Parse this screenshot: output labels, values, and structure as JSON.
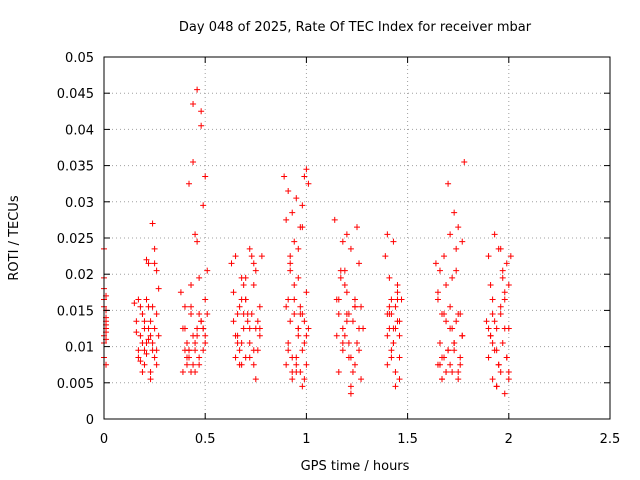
{
  "chart_data": {
    "type": "scatter",
    "title": "Day 048 of 2025, Rate Of TEC Index for receiver mbar",
    "xlabel": "GPS time / hours",
    "ylabel": "ROTI / TECUs",
    "xlim": [
      0,
      2.5
    ],
    "ylim": [
      0,
      0.05
    ],
    "x_ticks": [
      0,
      0.5,
      1,
      1.5,
      2,
      2.5
    ],
    "x_tick_labels": [
      "0",
      "0.5",
      "1",
      "1.5",
      "2",
      "2.5"
    ],
    "y_ticks": [
      0,
      0.005,
      0.01,
      0.015,
      0.02,
      0.025,
      0.03,
      0.035,
      0.04,
      0.045,
      0.05
    ],
    "y_tick_labels": [
      "0",
      "0.005",
      "0.01",
      "0.015",
      "0.02",
      "0.025",
      "0.03",
      "0.035",
      "0.04",
      "0.045",
      "0.05"
    ],
    "grid": true,
    "marker": "+",
    "color": "#ff0000",
    "series": [
      {
        "name": "ROTI",
        "x": [
          0.0,
          0.0,
          0.0,
          0.0,
          0.01,
          0.01,
          0.01,
          0.01,
          0.01,
          0.0,
          0.01,
          0.0,
          0.01,
          0.0,
          0.01,
          0.0,
          0.01,
          0.15,
          0.16,
          0.17,
          0.17,
          0.18,
          0.19,
          0.19,
          0.2,
          0.2,
          0.21,
          0.21,
          0.22,
          0.22,
          0.23,
          0.23,
          0.24,
          0.24,
          0.25,
          0.25,
          0.26,
          0.26,
          0.27,
          0.27,
          0.16,
          0.18,
          0.2,
          0.22,
          0.24,
          0.26,
          0.21,
          0.23,
          0.25,
          0.19,
          0.17,
          0.22,
          0.24,
          0.26,
          0.2,
          0.18,
          0.23,
          0.25,
          0.21,
          0.38,
          0.39,
          0.39,
          0.4,
          0.4,
          0.41,
          0.41,
          0.42,
          0.42,
          0.43,
          0.43,
          0.44,
          0.44,
          0.45,
          0.45,
          0.46,
          0.46,
          0.47,
          0.47,
          0.48,
          0.48,
          0.49,
          0.49,
          0.5,
          0.5,
          0.51,
          0.51,
          0.4,
          0.42,
          0.44,
          0.46,
          0.48,
          0.5,
          0.43,
          0.45,
          0.47,
          0.49,
          0.44,
          0.46,
          0.48,
          0.5,
          0.41,
          0.43,
          0.45,
          0.47,
          0.49,
          0.42,
          0.63,
          0.64,
          0.65,
          0.65,
          0.66,
          0.67,
          0.67,
          0.68,
          0.68,
          0.69,
          0.7,
          0.7,
          0.71,
          0.72,
          0.72,
          0.73,
          0.74,
          0.74,
          0.75,
          0.75,
          0.76,
          0.77,
          0.77,
          0.78,
          0.64,
          0.66,
          0.68,
          0.7,
          0.72,
          0.74,
          0.76,
          0.65,
          0.67,
          0.69,
          0.71,
          0.73,
          0.75,
          0.77,
          0.66,
          0.68,
          0.7,
          0.72,
          0.74,
          0.69,
          0.89,
          0.9,
          0.9,
          0.91,
          0.91,
          0.92,
          0.92,
          0.93,
          0.93,
          0.94,
          0.94,
          0.95,
          0.95,
          0.96,
          0.96,
          0.97,
          0.97,
          0.98,
          0.98,
          0.99,
          0.99,
          1.0,
          1.0,
          1.01,
          1.01,
          0.9,
          0.92,
          0.94,
          0.96,
          0.98,
          1.0,
          0.91,
          0.93,
          0.95,
          0.97,
          0.99,
          0.92,
          0.94,
          0.96,
          0.98,
          1.0,
          0.93,
          0.95,
          0.97,
          0.99,
          0.91,
          0.96,
          0.98,
          1.14,
          1.15,
          1.16,
          1.16,
          1.17,
          1.18,
          1.18,
          1.19,
          1.2,
          1.2,
          1.21,
          1.22,
          1.22,
          1.23,
          1.24,
          1.24,
          1.25,
          1.26,
          1.26,
          1.27,
          1.27,
          1.28,
          1.16,
          1.18,
          1.2,
          1.22,
          1.24,
          1.26,
          1.17,
          1.19,
          1.21,
          1.23,
          1.25,
          1.18,
          1.2,
          1.22,
          1.24,
          1.15,
          1.19,
          1.21,
          1.39,
          1.4,
          1.4,
          1.41,
          1.41,
          1.42,
          1.42,
          1.43,
          1.43,
          1.44,
          1.44,
          1.45,
          1.45,
          1.46,
          1.46,
          1.47,
          1.4,
          1.41,
          1.42,
          1.43,
          1.44,
          1.45,
          1.46,
          1.41,
          1.43,
          1.45,
          1.42,
          1.44,
          1.4,
          1.46,
          1.64,
          1.65,
          1.65,
          1.66,
          1.66,
          1.67,
          1.67,
          1.68,
          1.68,
          1.69,
          1.69,
          1.7,
          1.7,
          1.71,
          1.71,
          1.72,
          1.72,
          1.73,
          1.73,
          1.74,
          1.74,
          1.75,
          1.75,
          1.76,
          1.76,
          1.77,
          1.77,
          1.78,
          1.65,
          1.67,
          1.69,
          1.71,
          1.73,
          1.75,
          1.77,
          1.66,
          1.68,
          1.7,
          1.72,
          1.74,
          1.76,
          1.67,
          1.69,
          1.71,
          1.73,
          1.75,
          1.89,
          1.9,
          1.9,
          1.91,
          1.91,
          1.92,
          1.92,
          1.93,
          1.93,
          1.94,
          1.94,
          1.95,
          1.95,
          1.96,
          1.96,
          1.97,
          1.97,
          1.98,
          1.98,
          1.99,
          1.99,
          2.0,
          2.0,
          2.01,
          1.9,
          1.92,
          1.94,
          1.96,
          1.98,
          2.0,
          1.91,
          1.93,
          1.95,
          1.97,
          1.99,
          1.92,
          1.94,
          1.96,
          1.98,
          2.0
        ],
        "y": [
          0.0235,
          0.0195,
          0.018,
          0.0165,
          0.015,
          0.014,
          0.013,
          0.0125,
          0.012,
          0.0115,
          0.011,
          0.0105,
          0.0075,
          0.0085,
          0.017,
          0.0155,
          0.0135,
          0.016,
          0.012,
          0.0095,
          0.0165,
          0.008,
          0.0105,
          0.0145,
          0.0075,
          0.0125,
          0.009,
          0.022,
          0.0155,
          0.011,
          0.0065,
          0.0135,
          0.027,
          0.0095,
          0.0215,
          0.0085,
          0.0205,
          0.0145,
          0.0115,
          0.018,
          0.0135,
          0.0115,
          0.0095,
          0.0125,
          0.0105,
          0.0075,
          0.0165,
          0.0055,
          0.0235,
          0.0065,
          0.0085,
          0.0215,
          0.0155,
          0.0095,
          0.0135,
          0.0155,
          0.0115,
          0.0125,
          0.0105,
          0.0175,
          0.0125,
          0.0065,
          0.0155,
          0.0095,
          0.0105,
          0.0075,
          0.0085,
          0.0325,
          0.0185,
          0.0145,
          0.0435,
          0.0115,
          0.0095,
          0.0255,
          0.0125,
          0.0245,
          0.0195,
          0.0075,
          0.0135,
          0.0425,
          0.0095,
          0.0295,
          0.0165,
          0.0335,
          0.0145,
          0.0205,
          0.0125,
          0.0095,
          0.0075,
          0.0115,
          0.0135,
          0.0105,
          0.0155,
          0.0065,
          0.0085,
          0.0125,
          0.0355,
          0.0455,
          0.0405,
          0.0115,
          0.0085,
          0.0065,
          0.0105,
          0.0145,
          0.0125,
          0.0095,
          0.0215,
          0.0135,
          0.0085,
          0.0225,
          0.0115,
          0.0155,
          0.0095,
          0.0195,
          0.0075,
          0.0125,
          0.0165,
          0.0085,
          0.0135,
          0.0235,
          0.0105,
          0.0145,
          0.0185,
          0.0075,
          0.0125,
          0.0205,
          0.0095,
          0.0155,
          0.0115,
          0.0225,
          0.0175,
          0.0145,
          0.0105,
          0.0165,
          0.0125,
          0.0095,
          0.0135,
          0.0115,
          0.0075,
          0.0185,
          0.0145,
          0.0225,
          0.0055,
          0.0125,
          0.0105,
          0.0165,
          0.0195,
          0.0085,
          0.0215,
          0.0145,
          0.0335,
          0.0155,
          0.0075,
          0.0315,
          0.0095,
          0.0225,
          0.0135,
          0.0285,
          0.0055,
          0.0165,
          0.0245,
          0.0085,
          0.0305,
          0.0115,
          0.0195,
          0.0065,
          0.0145,
          0.0265,
          0.0045,
          0.0105,
          0.0335,
          0.0175,
          0.0075,
          0.0325,
          0.0125,
          0.0275,
          0.0205,
          0.0145,
          0.0125,
          0.0095,
          0.0115,
          0.0105,
          0.0085,
          0.0065,
          0.0155,
          0.0135,
          0.0215,
          0.0185,
          0.0235,
          0.0145,
          0.0345,
          0.0065,
          0.0075,
          0.0265,
          0.0055,
          0.0165,
          0.0125,
          0.0295,
          0.0275,
          0.0115,
          0.0165,
          0.0065,
          0.0205,
          0.0125,
          0.0095,
          0.0185,
          0.0145,
          0.0255,
          0.0105,
          0.0045,
          0.0235,
          0.0135,
          0.0075,
          0.0165,
          0.0265,
          0.0095,
          0.0215,
          0.0155,
          0.0055,
          0.0125,
          0.0145,
          0.0105,
          0.0175,
          0.0085,
          0.0155,
          0.0125,
          0.0195,
          0.0115,
          0.0145,
          0.0065,
          0.0105,
          0.0245,
          0.0135,
          0.0035,
          0.0155,
          0.0165,
          0.0205,
          0.0085,
          0.0225,
          0.0145,
          0.0075,
          0.0195,
          0.0125,
          0.0085,
          0.0165,
          0.0245,
          0.0105,
          0.0155,
          0.0065,
          0.0185,
          0.0135,
          0.0115,
          0.0055,
          0.0165,
          0.0255,
          0.0145,
          0.0095,
          0.0125,
          0.0045,
          0.0175,
          0.0135,
          0.0155,
          0.0105,
          0.0165,
          0.0145,
          0.0125,
          0.0115,
          0.0085,
          0.0215,
          0.0075,
          0.0165,
          0.0105,
          0.0205,
          0.0055,
          0.0145,
          0.0085,
          0.0225,
          0.0065,
          0.0185,
          0.0095,
          0.0325,
          0.0075,
          0.0155,
          0.0065,
          0.0125,
          0.0285,
          0.0095,
          0.0205,
          0.0135,
          0.0265,
          0.0055,
          0.0145,
          0.0075,
          0.0245,
          0.0115,
          0.0355,
          0.0175,
          0.0085,
          0.0065,
          0.0125,
          0.0105,
          0.0145,
          0.0115,
          0.0075,
          0.0145,
          0.0095,
          0.0195,
          0.0235,
          0.0085,
          0.0055,
          0.0135,
          0.0255,
          0.0105,
          0.0065,
          0.0135,
          0.0225,
          0.0085,
          0.0115,
          0.0185,
          0.0055,
          0.0165,
          0.0095,
          0.0255,
          0.0045,
          0.0125,
          0.0075,
          0.0235,
          0.0145,
          0.0065,
          0.0195,
          0.0105,
          0.0035,
          0.0165,
          0.0085,
          0.0215,
          0.0125,
          0.0055,
          0.0225,
          0.0125,
          0.0105,
          0.0095,
          0.0155,
          0.0175,
          0.0065,
          0.0115,
          0.0135,
          0.0075,
          0.0205,
          0.0085,
          0.0145,
          0.0045,
          0.0235,
          0.0125,
          0.0185
        ]
      }
    ]
  }
}
